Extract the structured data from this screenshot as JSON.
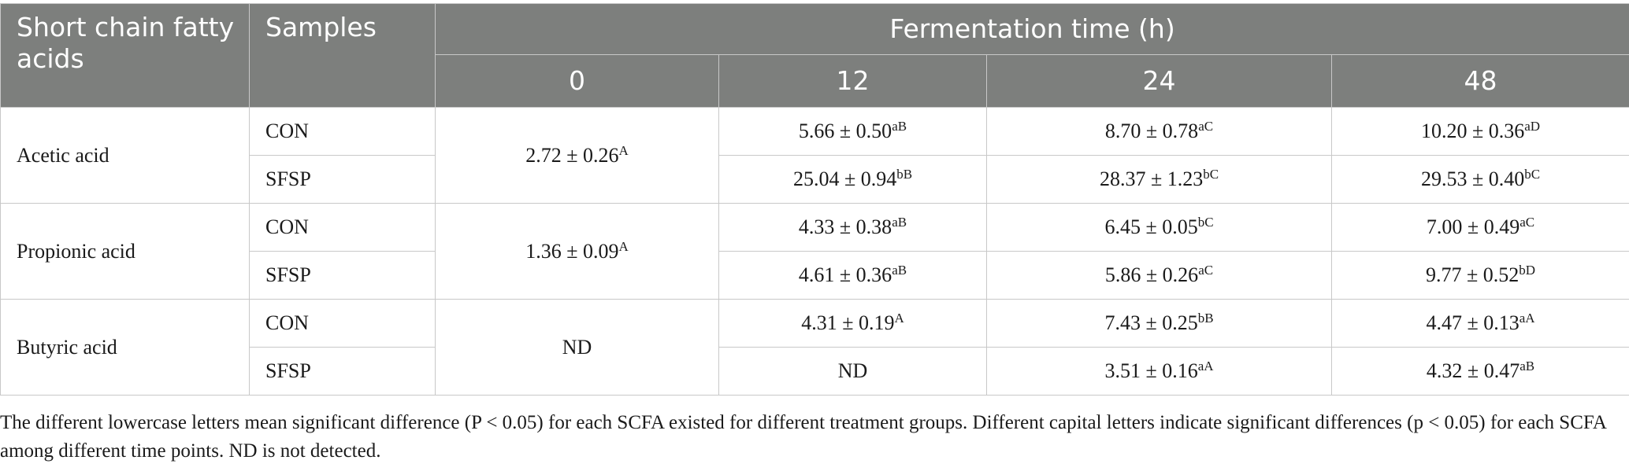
{
  "header": {
    "col_acid": "Short chain fatty acids",
    "col_samples": "Samples",
    "col_time": "Fermentation time (h)",
    "times": [
      "0",
      "12",
      "24",
      "48"
    ]
  },
  "rows": [
    {
      "acid": "Acetic acid",
      "t0": {
        "v": "2.72 ± 0.26",
        "s": "A"
      },
      "samples": [
        {
          "name": "CON",
          "cells": [
            {
              "v": "5.66 ± 0.50",
              "s": "aB"
            },
            {
              "v": "8.70 ± 0.78",
              "s": "aC"
            },
            {
              "v": "10.20 ± 0.36",
              "s": "aD"
            }
          ]
        },
        {
          "name": "SFSP",
          "cells": [
            {
              "v": "25.04 ± 0.94",
              "s": "bB"
            },
            {
              "v": "28.37 ± 1.23",
              "s": "bC"
            },
            {
              "v": "29.53 ± 0.40",
              "s": "bC"
            }
          ]
        }
      ]
    },
    {
      "acid": "Propionic acid",
      "t0": {
        "v": "1.36 ± 0.09",
        "s": "A"
      },
      "samples": [
        {
          "name": "CON",
          "cells": [
            {
              "v": "4.33 ± 0.38",
              "s": "aB"
            },
            {
              "v": "6.45 ± 0.05",
              "s": "bC"
            },
            {
              "v": "7.00 ± 0.49",
              "s": "aC"
            }
          ]
        },
        {
          "name": "SFSP",
          "cells": [
            {
              "v": "4.61 ± 0.36",
              "s": "aB"
            },
            {
              "v": "5.86 ± 0.26",
              "s": "aC"
            },
            {
              "v": "9.77 ± 0.52",
              "s": "bD"
            }
          ]
        }
      ]
    },
    {
      "acid": "Butyric acid",
      "t0": {
        "v": "ND",
        "s": ""
      },
      "samples": [
        {
          "name": "CON",
          "cells": [
            {
              "v": "4.31 ± 0.19",
              "s": "A"
            },
            {
              "v": "7.43 ± 0.25",
              "s": "bB"
            },
            {
              "v": "4.47 ± 0.13",
              "s": "aA"
            }
          ]
        },
        {
          "name": "SFSP",
          "cells": [
            {
              "v": "ND",
              "s": ""
            },
            {
              "v": "3.51 ± 0.16",
              "s": "aA"
            },
            {
              "v": "4.32 ± 0.47",
              "s": "aB"
            }
          ]
        }
      ]
    }
  ],
  "footnote": "The different lowercase letters mean significant difference (P < 0.05) for each SCFA existed for different treatment groups. Different capital letters indicate significant differences (p < 0.05) for each SCFA among different time points. ND is not detected."
}
